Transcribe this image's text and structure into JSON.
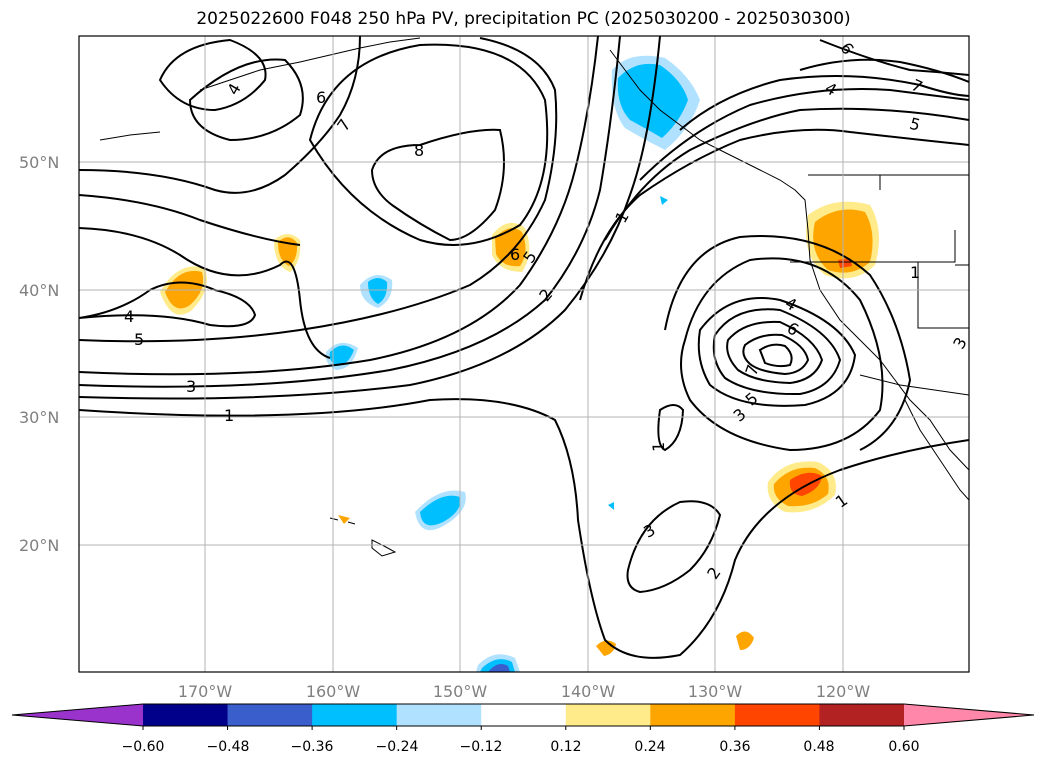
{
  "title": "2025022600 F048 250 hPa PV, precipitation PC (2025030200 - 2025030300)",
  "lat_labels": [
    "50°N",
    "40°N",
    "30°N",
    "20°N"
  ],
  "lon_labels": [
    "170°W",
    "160°W",
    "150°W",
    "140°W",
    "130°W",
    "120°W"
  ],
  "colorbar": {
    "colors": [
      "#9933cc",
      "#00008b",
      "#3a5fcd",
      "#00bfff",
      "#b0e2ff",
      "#ffffff",
      "#ffeb8a",
      "#ffa500",
      "#ff4500",
      "#b22222",
      "#ff88aa"
    ],
    "tick_labels": [
      "−0.60",
      "−0.48",
      "−0.36",
      "−0.24",
      "−0.12",
      "0.12",
      "0.24",
      "0.36",
      "0.48",
      "0.60"
    ]
  },
  "contour_labels": [
    {
      "text": "4"
    },
    {
      "text": "6"
    },
    {
      "text": "7"
    },
    {
      "text": "8"
    },
    {
      "text": "6"
    },
    {
      "text": "5"
    },
    {
      "text": "2"
    },
    {
      "text": "1"
    },
    {
      "text": "4"
    },
    {
      "text": "5"
    },
    {
      "text": "3"
    },
    {
      "text": "1"
    },
    {
      "text": "6"
    },
    {
      "text": "4"
    },
    {
      "text": "7"
    },
    {
      "text": "5"
    },
    {
      "text": "4"
    },
    {
      "text": "6"
    },
    {
      "text": "7"
    },
    {
      "text": "5"
    },
    {
      "text": "3"
    },
    {
      "text": "1"
    },
    {
      "text": "3"
    },
    {
      "text": "2"
    },
    {
      "text": "1"
    },
    {
      "text": "1"
    },
    {
      "text": "3"
    }
  ]
}
